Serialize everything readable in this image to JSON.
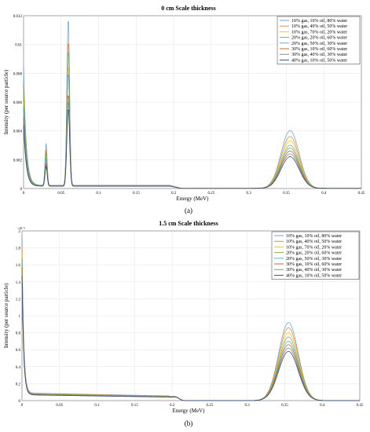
{
  "chart_data": [
    {
      "type": "line",
      "title": "0 cm Scale thickness",
      "xlabel": "Energy (MeV)",
      "ylabel": "Intensity (per source particle)",
      "xlim": [
        0,
        0.45
      ],
      "ylim": [
        0,
        0.012
      ],
      "x_ticks": [
        "0",
        "0.05",
        "0.1",
        "0.15",
        "0.2",
        "0.25",
        "0.3",
        "0.35",
        "0.4",
        "0.45"
      ],
      "y_ticks": [
        "0",
        "0.002",
        "0.004",
        "0.006",
        "0.008",
        "0.01",
        "0.012"
      ],
      "y_exponent": "",
      "grid": true,
      "legend_position": "top-right",
      "panel_label": "(a)",
      "series": [
        {
          "name": "10% gas, 10% oil, 80% water",
          "color": "#5b9bd5",
          "low_peak_0": 0.0082,
          "peak_30": 0.0029,
          "peak_60": 0.0118,
          "plateau": 0.00028,
          "peak_355": 0.004
        },
        {
          "name": "10% gas, 40% oil, 50% water",
          "color": "#ed7d31",
          "low_peak_0": 0.007,
          "peak_30": 0.0025,
          "peak_60": 0.0102,
          "plateau": 0.00026,
          "peak_355": 0.0036
        },
        {
          "name": "10% gas, 70% oil, 20% water",
          "color": "#ffc000",
          "low_peak_0": 0.0058,
          "peak_30": 0.002,
          "peak_60": 0.0085,
          "plateau": 0.00024,
          "peak_355": 0.0033
        },
        {
          "name": "20% gas, 20% oil, 60% water",
          "color": "#70ad47",
          "low_peak_0": 0.0066,
          "peak_30": 0.0023,
          "peak_60": 0.0096,
          "plateau": 0.00025,
          "peak_355": 0.003
        },
        {
          "name": "20% gas, 50% oil, 30% water",
          "color": "#4bacc6",
          "low_peak_0": 0.0055,
          "peak_30": 0.0019,
          "peak_60": 0.008,
          "plateau": 0.00023,
          "peak_355": 0.0028
        },
        {
          "name": "30% gas, 10% oil, 60% water",
          "color": "#c55a11",
          "low_peak_0": 0.0048,
          "peak_30": 0.0016,
          "peak_60": 0.0065,
          "plateau": 0.00022,
          "peak_355": 0.0026
        },
        {
          "name": "30% gas, 40% oil, 30% water",
          "color": "#7f7f7f",
          "low_peak_0": 0.0045,
          "peak_30": 0.0015,
          "peak_60": 0.006,
          "plateau": 0.00021,
          "peak_355": 0.0024
        },
        {
          "name": "40% gas, 10% oil, 50% water",
          "color": "#264478",
          "low_peak_0": 0.0042,
          "peak_30": 0.0014,
          "peak_60": 0.0055,
          "plateau": 0.0002,
          "peak_355": 0.0022
        }
      ]
    },
    {
      "type": "line",
      "title": "1.5 cm Scale thickness",
      "xlabel": "Energy (MeV)",
      "ylabel": "Intensity (per source particle)",
      "xlim": [
        0,
        0.45
      ],
      "ylim": [
        0,
        2
      ],
      "x_ticks": [
        "0",
        "0.05",
        "0.1",
        "0.15",
        "0.2",
        "0.25",
        "0.3",
        "0.35",
        "0.4",
        "0.45"
      ],
      "y_ticks": [
        "0",
        "0.2",
        "0.4",
        "0.6",
        "0.8",
        "1",
        "1.2",
        "1.4",
        "1.6",
        "1.8",
        "2"
      ],
      "y_exponent": "×10⁻⁸",
      "grid": true,
      "legend_position": "top-right",
      "panel_label": "(b)",
      "series": [
        {
          "name": "10% gas, 10% oil, 80% water",
          "color": "#5b9bd5",
          "low_peak_0": 1.85,
          "plateau_start": 0.09,
          "plateau_end": 0.055,
          "peak_355": 0.92
        },
        {
          "name": "10% gas, 40% oil, 50% water",
          "color": "#ed7d31",
          "low_peak_0": 1.75,
          "plateau_start": 0.085,
          "plateau_end": 0.052,
          "peak_355": 0.86
        },
        {
          "name": "10% gas, 70% oil, 20% water",
          "color": "#ffc000",
          "low_peak_0": 1.65,
          "plateau_start": 0.08,
          "plateau_end": 0.05,
          "peak_355": 0.8
        },
        {
          "name": "20% gas, 20% oil, 60% water",
          "color": "#70ad47",
          "low_peak_0": 1.6,
          "plateau_start": 0.078,
          "plateau_end": 0.048,
          "peak_355": 0.75
        },
        {
          "name": "20% gas, 50% oil, 30% water",
          "color": "#4bacc6",
          "low_peak_0": 1.55,
          "plateau_start": 0.075,
          "plateau_end": 0.046,
          "peak_355": 0.7
        },
        {
          "name": "30% gas, 10% oil, 60% water",
          "color": "#c55a11",
          "low_peak_0": 1.5,
          "plateau_start": 0.072,
          "plateau_end": 0.044,
          "peak_355": 0.66
        },
        {
          "name": "30% gas, 40% oil, 30% water",
          "color": "#7f7f7f",
          "low_peak_0": 1.45,
          "plateau_start": 0.07,
          "plateau_end": 0.042,
          "peak_355": 0.62
        },
        {
          "name": "40% gas, 10% oil, 50% water",
          "color": "#264478",
          "low_peak_0": 1.4,
          "plateau_start": 0.068,
          "plateau_end": 0.04,
          "peak_355": 0.58
        }
      ]
    }
  ]
}
